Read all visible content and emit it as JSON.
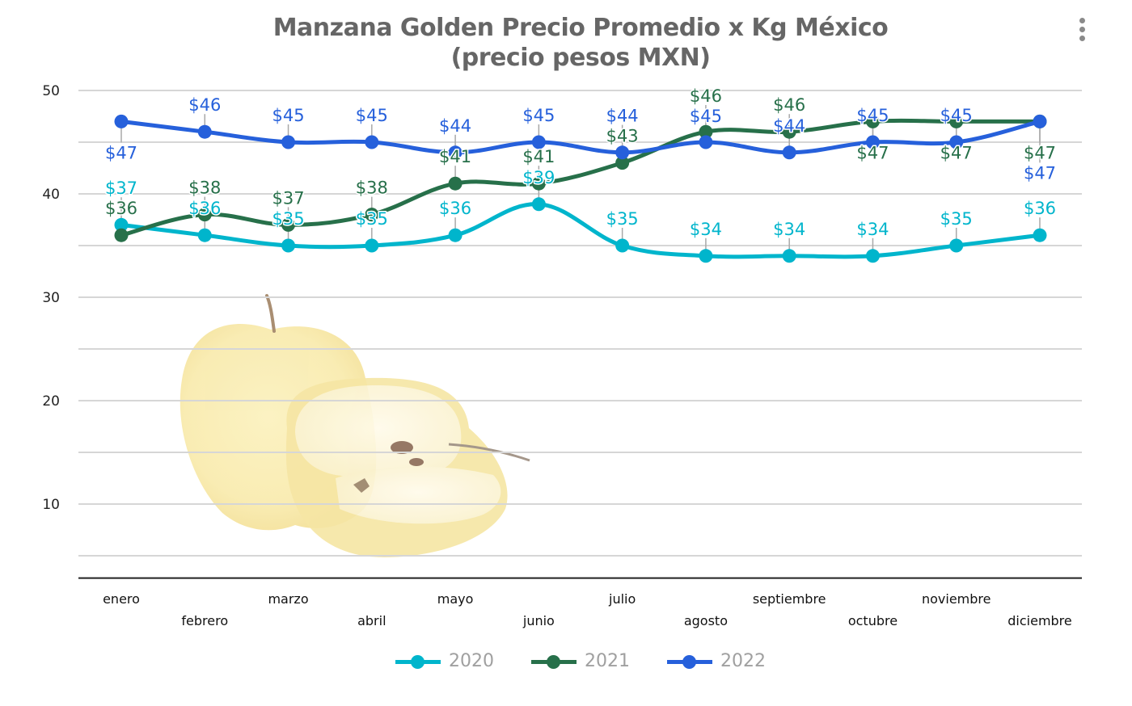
{
  "title_lines": [
    "Manzana Golden Precio Promedio x Kg México",
    "(precio pesos MXN)"
  ],
  "menu": {
    "icon": "more-vertical-icon"
  },
  "chart_data": {
    "type": "line",
    "title": "Manzana Golden Precio Promedio x Kg México (precio pesos MXN)",
    "xlabel": "",
    "ylabel": "",
    "categories": [
      "enero",
      "febrero",
      "marzo",
      "abril",
      "mayo",
      "junio",
      "julio",
      "agosto",
      "septiembre",
      "octubre",
      "noviembre",
      "diciembre"
    ],
    "ylim": [
      3,
      50
    ],
    "yticks": [
      10,
      20,
      30,
      40,
      50
    ],
    "minor_gridlines": [
      5,
      15,
      25,
      35,
      45
    ],
    "grid": true,
    "smooth": true,
    "label_prefix": "$",
    "legend_position": "bottom",
    "series": [
      {
        "name": "2020",
        "color": "#00B5CC",
        "values": [
          37,
          36,
          35,
          35,
          36,
          39,
          35,
          34,
          34,
          34,
          35,
          36
        ],
        "label_side": [
          "above",
          "above",
          "above",
          "above",
          "above",
          "above",
          "above",
          "above",
          "above",
          "above",
          "above",
          "above"
        ]
      },
      {
        "name": "2021",
        "color": "#27704A",
        "values": [
          36,
          38,
          37,
          38,
          41,
          41,
          43,
          46,
          46,
          47,
          47,
          47
        ],
        "label_side": [
          "above",
          "above",
          "above",
          "above",
          "above",
          "above",
          "above",
          "above",
          "above",
          "below",
          "below",
          "below"
        ]
      },
      {
        "name": "2022",
        "color": "#2660DB",
        "values": [
          47,
          46,
          45,
          45,
          44,
          45,
          44,
          45,
          44,
          45,
          45,
          47
        ],
        "label_side": [
          "below",
          "above",
          "above",
          "above",
          "above",
          "above",
          "above",
          "above",
          "above",
          "above",
          "above",
          "below"
        ]
      }
    ]
  },
  "background_image": {
    "description": "golden-apple-illustration"
  }
}
